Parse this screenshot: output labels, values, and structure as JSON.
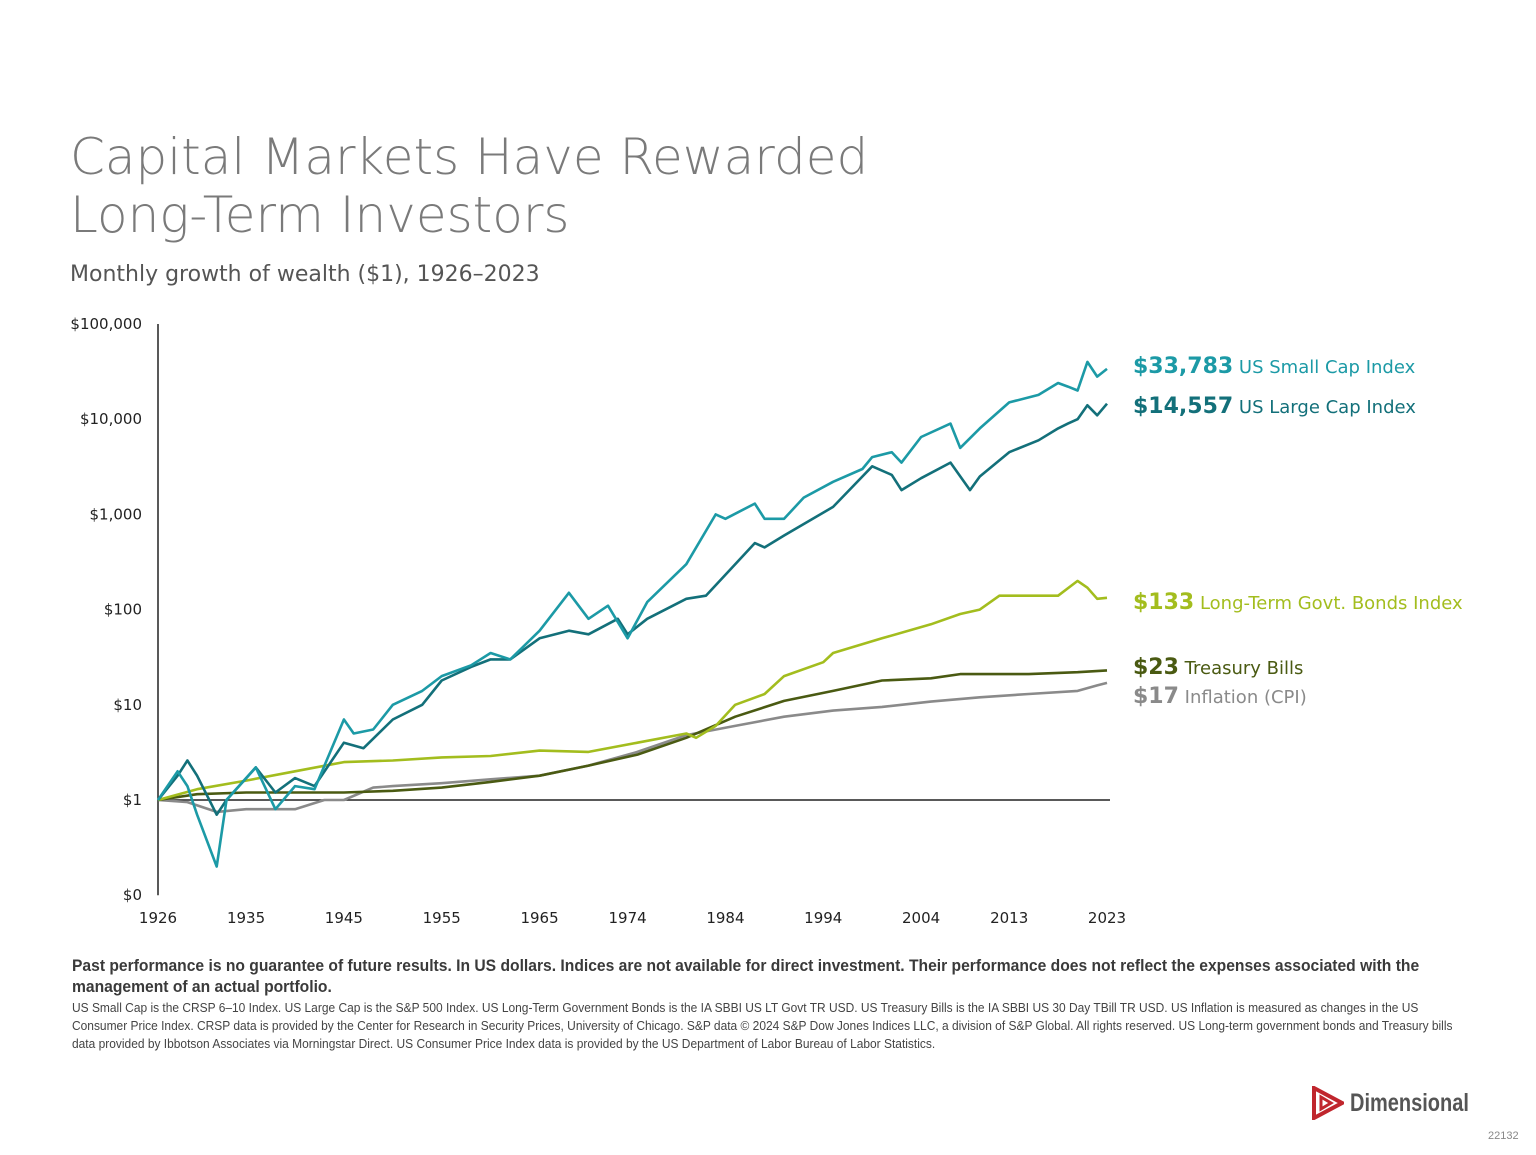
{
  "title_line1": "Capital Markets Have Rewarded",
  "title_line2": "Long-Term Investors",
  "subtitle": "Monthly growth of wealth ($1), 1926–2023",
  "chart_data": {
    "type": "line",
    "yscale": "log",
    "ylim": [
      0.1,
      100000
    ],
    "xlim": [
      1926,
      2023
    ],
    "yticks": [
      {
        "v": 0.1,
        "label": "$0"
      },
      {
        "v": 1,
        "label": "$1"
      },
      {
        "v": 10,
        "label": "$10"
      },
      {
        "v": 100,
        "label": "$100"
      },
      {
        "v": 1000,
        "label": "$1,000"
      },
      {
        "v": 10000,
        "label": "$10,000"
      },
      {
        "v": 100000,
        "label": "$100,000"
      }
    ],
    "xticks": [
      1926,
      1935,
      1945,
      1955,
      1965,
      1974,
      1984,
      1994,
      2004,
      2013,
      2023
    ],
    "series": [
      {
        "name": "US Small Cap Index",
        "end_label": "$33,783",
        "color": "#1c9aa6",
        "points": [
          [
            1926,
            1
          ],
          [
            1928,
            2
          ],
          [
            1929,
            1.4
          ],
          [
            1930,
            0.7
          ],
          [
            1932,
            0.2
          ],
          [
            1933,
            1
          ],
          [
            1936,
            2.2
          ],
          [
            1938,
            0.8
          ],
          [
            1940,
            1.4
          ],
          [
            1942,
            1.3
          ],
          [
            1945,
            7
          ],
          [
            1946,
            5
          ],
          [
            1948,
            5.5
          ],
          [
            1950,
            10
          ],
          [
            1953,
            14
          ],
          [
            1955,
            20
          ],
          [
            1958,
            26
          ],
          [
            1960,
            35
          ],
          [
            1962,
            30
          ],
          [
            1965,
            60
          ],
          [
            1968,
            150
          ],
          [
            1970,
            80
          ],
          [
            1972,
            110
          ],
          [
            1974,
            50
          ],
          [
            1976,
            120
          ],
          [
            1980,
            300
          ],
          [
            1983,
            1000
          ],
          [
            1984,
            900
          ],
          [
            1987,
            1300
          ],
          [
            1988,
            900
          ],
          [
            1990,
            900
          ],
          [
            1992,
            1500
          ],
          [
            1995,
            2200
          ],
          [
            1998,
            3000
          ],
          [
            1999,
            4000
          ],
          [
            2001,
            4500
          ],
          [
            2002,
            3500
          ],
          [
            2004,
            6500
          ],
          [
            2007,
            9000
          ],
          [
            2008,
            5000
          ],
          [
            2010,
            8000
          ],
          [
            2013,
            15000
          ],
          [
            2016,
            18000
          ],
          [
            2018,
            24000
          ],
          [
            2019,
            22000
          ],
          [
            2020,
            20000
          ],
          [
            2021,
            40000
          ],
          [
            2022,
            28000
          ],
          [
            2023,
            33783
          ]
        ]
      },
      {
        "name": "US Large Cap Index",
        "end_label": "$14,557",
        "color": "#13707a",
        "points": [
          [
            1926,
            1
          ],
          [
            1928,
            1.8
          ],
          [
            1929,
            2.6
          ],
          [
            1930,
            1.8
          ],
          [
            1932,
            0.7
          ],
          [
            1933,
            1
          ],
          [
            1936,
            2.2
          ],
          [
            1938,
            1.2
          ],
          [
            1940,
            1.7
          ],
          [
            1942,
            1.4
          ],
          [
            1945,
            4
          ],
          [
            1947,
            3.5
          ],
          [
            1950,
            7
          ],
          [
            1953,
            10
          ],
          [
            1955,
            18
          ],
          [
            1958,
            25
          ],
          [
            1960,
            30
          ],
          [
            1962,
            30
          ],
          [
            1965,
            50
          ],
          [
            1968,
            60
          ],
          [
            1970,
            55
          ],
          [
            1973,
            80
          ],
          [
            1974,
            55
          ],
          [
            1976,
            80
          ],
          [
            1980,
            130
          ],
          [
            1982,
            140
          ],
          [
            1985,
            300
          ],
          [
            1987,
            500
          ],
          [
            1988,
            450
          ],
          [
            1990,
            600
          ],
          [
            1995,
            1200
          ],
          [
            1998,
            2500
          ],
          [
            1999,
            3200
          ],
          [
            2001,
            2600
          ],
          [
            2002,
            1800
          ],
          [
            2004,
            2400
          ],
          [
            2007,
            3500
          ],
          [
            2009,
            1800
          ],
          [
            2010,
            2500
          ],
          [
            2013,
            4500
          ],
          [
            2016,
            6000
          ],
          [
            2018,
            8000
          ],
          [
            2019,
            9000
          ],
          [
            2020,
            10000
          ],
          [
            2021,
            14000
          ],
          [
            2022,
            11000
          ],
          [
            2023,
            14557
          ]
        ]
      },
      {
        "name": "Long-Term Govt. Bonds Index",
        "end_label": "$133",
        "color": "#a3bd1e",
        "points": [
          [
            1926,
            1
          ],
          [
            1930,
            1.3
          ],
          [
            1935,
            1.6
          ],
          [
            1940,
            2
          ],
          [
            1945,
            2.5
          ],
          [
            1950,
            2.6
          ],
          [
            1955,
            2.8
          ],
          [
            1960,
            2.9
          ],
          [
            1965,
            3.3
          ],
          [
            1970,
            3.2
          ],
          [
            1975,
            4
          ],
          [
            1980,
            5
          ],
          [
            1981,
            4.5
          ],
          [
            1983,
            6
          ],
          [
            1985,
            10
          ],
          [
            1988,
            13
          ],
          [
            1990,
            20
          ],
          [
            1994,
            28
          ],
          [
            1995,
            35
          ],
          [
            2000,
            50
          ],
          [
            2005,
            70
          ],
          [
            2008,
            90
          ],
          [
            2010,
            100
          ],
          [
            2012,
            140
          ],
          [
            2015,
            140
          ],
          [
            2018,
            140
          ],
          [
            2020,
            200
          ],
          [
            2021,
            170
          ],
          [
            2022,
            130
          ],
          [
            2023,
            133
          ]
        ]
      },
      {
        "name": "Treasury Bills",
        "end_label": "$23",
        "color": "#4a5a12",
        "points": [
          [
            1926,
            1
          ],
          [
            1930,
            1.15
          ],
          [
            1935,
            1.2
          ],
          [
            1945,
            1.2
          ],
          [
            1950,
            1.25
          ],
          [
            1955,
            1.35
          ],
          [
            1960,
            1.55
          ],
          [
            1965,
            1.8
          ],
          [
            1970,
            2.3
          ],
          [
            1975,
            3
          ],
          [
            1980,
            4.5
          ],
          [
            1985,
            7.5
          ],
          [
            1990,
            11
          ],
          [
            1995,
            14
          ],
          [
            2000,
            18
          ],
          [
            2005,
            19
          ],
          [
            2008,
            21
          ],
          [
            2015,
            21
          ],
          [
            2020,
            22
          ],
          [
            2023,
            23
          ]
        ]
      },
      {
        "name": "Inflation (CPI)",
        "end_label": "$17",
        "color": "#8a8a8a",
        "points": [
          [
            1926,
            1
          ],
          [
            1929,
            0.95
          ],
          [
            1932,
            0.75
          ],
          [
            1935,
            0.8
          ],
          [
            1940,
            0.8
          ],
          [
            1943,
            1
          ],
          [
            1945,
            1
          ],
          [
            1948,
            1.35
          ],
          [
            1950,
            1.4
          ],
          [
            1955,
            1.5
          ],
          [
            1960,
            1.65
          ],
          [
            1965,
            1.8
          ],
          [
            1970,
            2.3
          ],
          [
            1975,
            3.2
          ],
          [
            1980,
            4.8
          ],
          [
            1985,
            6
          ],
          [
            1990,
            7.5
          ],
          [
            1995,
            8.7
          ],
          [
            2000,
            9.5
          ],
          [
            2005,
            10.8
          ],
          [
            2010,
            12
          ],
          [
            2015,
            13
          ],
          [
            2020,
            14
          ],
          [
            2022,
            16
          ],
          [
            2023,
            17
          ]
        ]
      }
    ]
  },
  "disclaimer_bold": "Past performance is no guarantee of future results. In US dollars. Indices are not available for direct investment. Their performance does not reflect the expenses associated with the management of an actual portfolio.",
  "disclaimer": "US Small Cap is the CRSP 6–10 Index. US Large Cap is the S&P 500 Index. US Long-Term Government Bonds is the IA SBBI US LT Govt TR USD. US Treasury Bills is the IA SBBI US 30 Day TBill TR USD. US Inflation is measured as changes in the US Consumer Price Index. CRSP data is provided by the Center for Research in Security Prices, University of Chicago. S&P data © 2024 S&P Dow Jones Indices LLC, a division of S&P Global. All rights reserved. US Long-term government bonds and Treasury bills data provided by Ibbotson Associates via Morningstar Direct. US Consumer Price Index data is provided by the US Department of Labor Bureau of Labor Statistics.",
  "logo_text": "Dimensional",
  "doc_code": "22132"
}
